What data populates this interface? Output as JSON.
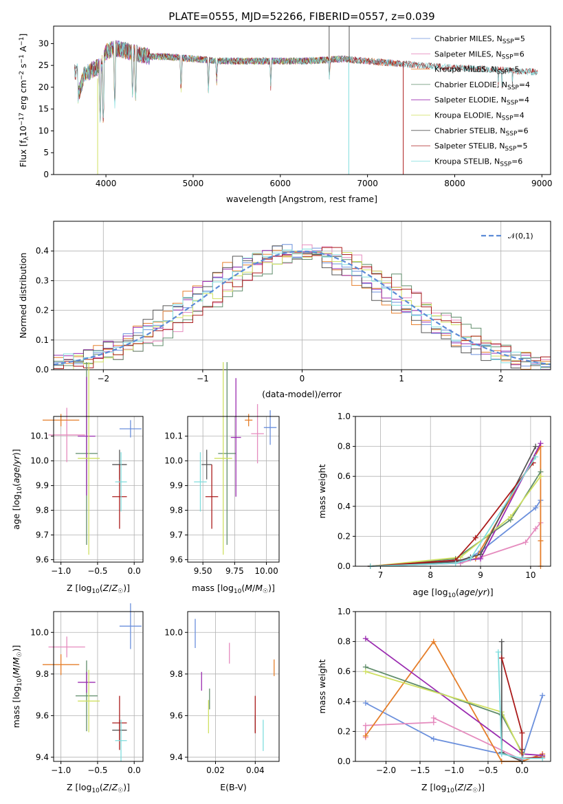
{
  "title": "PLATE=0555, MJD=52266, FIBERID=0557, z=0.039",
  "colors": {
    "Chabrier MILES": "#6a8fdc",
    "Salpeter MILES": "#e58bbe",
    "Kroupa MILES": "#e57e2a",
    "Chabrier ELODIE": "#5f8c6a",
    "Salpeter ELODIE": "#9a2bb0",
    "Kroupa ELODIE": "#cfe061",
    "Chabrier STELIB": "#555555",
    "Salpeter STELIB": "#aa1a1a",
    "Kroupa STELIB": "#7fdddd",
    "normal": "#5b8ad6"
  },
  "chart_data": [
    {
      "id": "spectrum",
      "type": "line",
      "xlabel": "wavelength [Angstrom, rest frame]",
      "ylabel": "Flux [f_λ10^-17 erg cm^-2 s^-1 A^-1]",
      "xlim": [
        3400,
        9100
      ],
      "ylim": [
        0,
        34
      ],
      "xticks": [
        4000,
        5000,
        6000,
        7000,
        8000,
        9000
      ],
      "yticks": [
        0,
        5,
        10,
        15,
        20,
        25,
        30
      ],
      "legend_position": "upper right",
      "legend": [
        {
          "prefix": "Chabrier MILES, N",
          "sub": "SSP",
          "suffix": "=5",
          "series": "Chabrier MILES"
        },
        {
          "prefix": "Salpeter MILES, N",
          "sub": "SSP",
          "suffix": "=6",
          "series": "Salpeter MILES"
        },
        {
          "prefix": "Kroupa MILES, N",
          "sub": "SSP",
          "suffix": "=5",
          "series": "Kroupa MILES"
        },
        {
          "prefix": "Chabrier ELODIE, N",
          "sub": "SSP",
          "suffix": "=4",
          "series": "Chabrier ELODIE"
        },
        {
          "prefix": "Salpeter ELODIE, N",
          "sub": "SSP",
          "suffix": "=4",
          "series": "Salpeter ELODIE"
        },
        {
          "prefix": "Kroupa ELODIE, N",
          "sub": "SSP",
          "suffix": "=4",
          "series": "Kroupa ELODIE"
        },
        {
          "prefix": "Chabrier STELIB, N",
          "sub": "SSP",
          "suffix": "=6",
          "series": "Chabrier STELIB"
        },
        {
          "prefix": "Salpeter STELIB, N",
          "sub": "SSP",
          "suffix": "=5",
          "series": "Salpeter STELIB"
        },
        {
          "prefix": "Kroupa STELIB, N",
          "sub": "SSP",
          "suffix": "=6",
          "series": "Kroupa STELIB"
        }
      ],
      "continuum": {
        "x": [
          3680,
          3750,
          3850,
          3950,
          4000,
          4100,
          4300,
          4500,
          4700,
          5000,
          5300,
          5600,
          6000,
          6300,
          6700,
          7000,
          7300,
          7600,
          8000,
          8500,
          8900
        ],
        "y": [
          18,
          23,
          24,
          25,
          28,
          29,
          28,
          27,
          27,
          26.5,
          26,
          26,
          26,
          26,
          26.5,
          26,
          25.5,
          25,
          24.5,
          24,
          23.5
        ]
      },
      "absorption_lines": [
        {
          "x": 3934,
          "y": 12
        },
        {
          "x": 3969,
          "y": 12
        },
        {
          "x": 4102,
          "y": 16
        },
        {
          "x": 4305,
          "y": 18
        },
        {
          "x": 4341,
          "y": 17
        },
        {
          "x": 4861,
          "y": 19
        },
        {
          "x": 5175,
          "y": 19
        },
        {
          "x": 5270,
          "y": 21
        },
        {
          "x": 5890,
          "y": 20
        },
        {
          "x": 6563,
          "y": 22
        },
        {
          "x": 8500,
          "y": 21
        },
        {
          "x": 8542,
          "y": 20
        },
        {
          "x": 8662,
          "y": 21
        }
      ],
      "spikes": [
        {
          "series": "Kroupa ELODIE",
          "x": 3905,
          "y0": 0,
          "y1": 22
        },
        {
          "series": "Salpeter STELIB",
          "x": 7410,
          "y0": 0,
          "y1": 26
        },
        {
          "series": "Kroupa STELIB",
          "x": 6785,
          "y0": 0,
          "y1": 26
        },
        {
          "series": "Chabrier STELIB",
          "x": 6560,
          "y0": 26,
          "y1": 34
        },
        {
          "series": "Chabrier STELIB",
          "x": 6790,
          "y0": 26,
          "y1": 34
        }
      ]
    },
    {
      "id": "residuals",
      "type": "histogram",
      "xlabel": "(data-model)/error",
      "ylabel": "Normed distribution",
      "xlim": [
        -2.5,
        2.5
      ],
      "ylim": [
        0,
        0.5
      ],
      "xticks": [
        -2,
        -1,
        0,
        1,
        2
      ],
      "yticks": [
        0.0,
        0.1,
        0.2,
        0.3,
        0.4
      ],
      "legend": "𝒩(0,1)",
      "legend_position": "upper right",
      "bin_width": 0.1,
      "series": [
        {
          "name": "Chabrier MILES",
          "shift": 0.01
        },
        {
          "name": "Salpeter MILES",
          "shift": -0.015
        },
        {
          "name": "Kroupa MILES",
          "shift": 0.018
        },
        {
          "name": "Chabrier ELODIE",
          "shift": -0.02
        },
        {
          "name": "Salpeter ELODIE",
          "shift": 0.012
        },
        {
          "name": "Kroupa ELODIE",
          "shift": -0.008
        },
        {
          "name": "Chabrier STELIB",
          "shift": 0.02
        },
        {
          "name": "Salpeter STELIB",
          "shift": -0.012
        },
        {
          "name": "Kroupa STELIB",
          "shift": 0.006
        }
      ]
    },
    {
      "id": "age-vs-Z",
      "type": "errorbar",
      "xlabel": "Z [log10(Z/Z☉)]",
      "ylabel": "age  [log10(age/yr)]",
      "xlim": [
        -1.1,
        0.12
      ],
      "ylim": [
        9.59,
        10.18
      ],
      "xticks": [
        -1.0,
        -0.5,
        0.0
      ],
      "xticklabels": [
        "−1.0",
        "−0.5",
        "0.0"
      ],
      "yticks": [
        9.6,
        9.7,
        9.8,
        9.9,
        10.0,
        10.1
      ],
      "points": [
        {
          "series": "Chabrier MILES",
          "x": -0.05,
          "xerr": 0.15,
          "y": 10.13,
          "yerr": 0.035
        },
        {
          "series": "Salpeter MILES",
          "x": -0.92,
          "xerr": 0.25,
          "y": 10.105,
          "yerr": 0.11
        },
        {
          "series": "Kroupa MILES",
          "x": -1.0,
          "xerr": 0.25,
          "y": 10.165,
          "yerr": 0.025
        },
        {
          "series": "Chabrier ELODIE",
          "x": -0.65,
          "xerr": 0.15,
          "y": 10.03,
          "yerr": 0.37
        },
        {
          "series": "Salpeter ELODIE",
          "x": -0.65,
          "xerr": 0.12,
          "y": 10.1,
          "yerr": 0.24
        },
        {
          "series": "Kroupa ELODIE",
          "x": -0.62,
          "xerr": 0.15,
          "y": 10.01,
          "yerr": 0.39
        },
        {
          "series": "Chabrier STELIB",
          "x": -0.2,
          "xerr": 0.1,
          "y": 9.985,
          "yerr": 0.06
        },
        {
          "series": "Salpeter STELIB",
          "x": -0.2,
          "xerr": 0.1,
          "y": 9.855,
          "yerr": 0.13
        },
        {
          "series": "Kroupa STELIB",
          "x": -0.18,
          "xerr": 0.08,
          "y": 9.915,
          "yerr": 0.12
        }
      ]
    },
    {
      "id": "age-vs-mass",
      "type": "errorbar",
      "xlabel": "mass [log10(M/M☉)]",
      "ylabel": "",
      "xlim": [
        9.38,
        10.1
      ],
      "ylim": [
        9.59,
        10.18
      ],
      "xticks": [
        9.5,
        9.75,
        10.0
      ],
      "xticklabels": [
        "9.50",
        "9.75",
        "10.00"
      ],
      "yticks": [
        9.6,
        9.7,
        9.8,
        9.9,
        10.0,
        10.1
      ],
      "points": [
        {
          "series": "Chabrier MILES",
          "x": 10.03,
          "xerr": 0.05,
          "y": 10.135,
          "yerr": 0.07
        },
        {
          "series": "Salpeter MILES",
          "x": 9.93,
          "xerr": 0.05,
          "y": 10.11,
          "yerr": 0.12
        },
        {
          "series": "Kroupa MILES",
          "x": 9.86,
          "xerr": 0.03,
          "y": 10.165,
          "yerr": 0.025
        },
        {
          "series": "Chabrier ELODIE",
          "x": 9.69,
          "xerr": 0.07,
          "y": 10.03,
          "yerr": 0.37
        },
        {
          "series": "Salpeter ELODIE",
          "x": 9.76,
          "xerr": 0.04,
          "y": 10.095,
          "yerr": 0.24
        },
        {
          "series": "Kroupa ELODIE",
          "x": 9.66,
          "xerr": 0.07,
          "y": 10.01,
          "yerr": 0.39
        },
        {
          "series": "Chabrier STELIB",
          "x": 9.53,
          "xerr": 0.04,
          "y": 9.985,
          "yerr": 0.06
        },
        {
          "series": "Salpeter STELIB",
          "x": 9.57,
          "xerr": 0.05,
          "y": 9.855,
          "yerr": 0.13
        },
        {
          "series": "Kroupa STELIB",
          "x": 9.48,
          "xerr": 0.05,
          "y": 9.915,
          "yerr": 0.12
        }
      ]
    },
    {
      "id": "massweight-vs-age",
      "type": "line",
      "xlabel": "age  [log10(age/yr)]",
      "ylabel": "mass weight",
      "xlim": [
        6.5,
        10.4
      ],
      "ylim": [
        0,
        1
      ],
      "xticks": [
        7,
        8,
        9,
        10
      ],
      "yticks": [
        0.0,
        0.2,
        0.4,
        0.6,
        0.8,
        1.0
      ],
      "series": [
        {
          "name": "Chabrier MILES",
          "x": [
            6.8,
            8.6,
            9.0,
            10.1,
            10.2
          ],
          "y": [
            0.0,
            0.02,
            0.1,
            0.39,
            0.44
          ]
        },
        {
          "name": "Salpeter MILES",
          "x": [
            6.8,
            8.6,
            9.0,
            9.9,
            10.1,
            10.2
          ],
          "y": [
            0.0,
            0.02,
            0.06,
            0.16,
            0.25,
            0.29
          ]
        },
        {
          "name": "Kroupa MILES",
          "x": [
            8.5,
            8.9,
            10.2,
            10.2,
            10.2
          ],
          "y": [
            0.04,
            0.05,
            0.8,
            0.17,
            0.0
          ]
        },
        {
          "name": "Chabrier ELODIE",
          "x": [
            6.8,
            8.5,
            9.6,
            10.2
          ],
          "y": [
            0.0,
            0.05,
            0.31,
            0.63
          ]
        },
        {
          "name": "Salpeter ELODIE",
          "x": [
            6.8,
            8.6,
            9.0,
            10.2
          ],
          "y": [
            0.0,
            0.04,
            0.05,
            0.82
          ]
        },
        {
          "name": "Kroupa ELODIE",
          "x": [
            6.8,
            8.6,
            9.6,
            10.2
          ],
          "y": [
            0.0,
            0.06,
            0.33,
            0.6
          ]
        },
        {
          "name": "Chabrier STELIB",
          "x": [
            6.8,
            8.5,
            8.8,
            9.0,
            10.1
          ],
          "y": [
            0.0,
            0.03,
            0.06,
            0.08,
            0.8
          ]
        },
        {
          "name": "Salpeter STELIB",
          "x": [
            6.8,
            8.5,
            8.9,
            10.05
          ],
          "y": [
            0.0,
            0.04,
            0.19,
            0.69
          ]
        },
        {
          "name": "Kroupa STELIB",
          "x": [
            6.8,
            8.5,
            8.8,
            10.1
          ],
          "y": [
            0.0,
            0.02,
            0.05,
            0.73
          ]
        }
      ]
    },
    {
      "id": "mass-vs-Z",
      "type": "errorbar",
      "xlabel": "Z [log10(Z/Z☉)]",
      "ylabel": "mass [log10(M/M☉)]",
      "xlim": [
        -1.1,
        0.12
      ],
      "ylim": [
        9.38,
        10.1
      ],
      "xticks": [
        -1.0,
        -0.5,
        0.0
      ],
      "xticklabels": [
        "−1.0",
        "−0.5",
        "0.0"
      ],
      "yticks": [
        9.4,
        9.6,
        9.8,
        10.0
      ],
      "points": [
        {
          "series": "Chabrier MILES",
          "x": -0.05,
          "xerr": 0.15,
          "y": 10.03,
          "yerr": 0.11
        },
        {
          "series": "Salpeter MILES",
          "x": -0.92,
          "xerr": 0.25,
          "y": 9.93,
          "yerr": 0.05
        },
        {
          "series": "Kroupa MILES",
          "x": -1.0,
          "xerr": 0.25,
          "y": 9.845,
          "yerr": 0.05
        },
        {
          "series": "Chabrier ELODIE",
          "x": -0.65,
          "xerr": 0.15,
          "y": 9.695,
          "yerr": 0.17
        },
        {
          "series": "Salpeter ELODIE",
          "x": -0.65,
          "xerr": 0.12,
          "y": 9.76,
          "yerr": 0.05
        },
        {
          "series": "Kroupa ELODIE",
          "x": -0.62,
          "xerr": 0.15,
          "y": 9.67,
          "yerr": 0.15
        },
        {
          "series": "Chabrier STELIB",
          "x": -0.2,
          "xerr": 0.1,
          "y": 9.53,
          "yerr": 0.05
        },
        {
          "series": "Salpeter STELIB",
          "x": -0.2,
          "xerr": 0.1,
          "y": 9.565,
          "yerr": 0.13
        },
        {
          "series": "Kroupa STELIB",
          "x": -0.18,
          "xerr": 0.08,
          "y": 9.48,
          "yerr": 0.1
        }
      ]
    },
    {
      "id": "mass-vs-EBV",
      "type": "errorbar",
      "xlabel": "E(B-V)",
      "ylabel": "",
      "xlim": [
        0.006,
        0.052
      ],
      "ylim": [
        9.38,
        10.1
      ],
      "xticks": [
        0.02,
        0.04
      ],
      "xticklabels": [
        "0.02",
        "0.04"
      ],
      "yticks": [
        9.4,
        9.6,
        9.8,
        10.0
      ],
      "points": [
        {
          "series": "Chabrier MILES",
          "x": 0.0098,
          "xerr": 0,
          "y": 9.995,
          "yerr": 0.07
        },
        {
          "series": "Salpeter MILES",
          "x": 0.027,
          "xerr": 0,
          "y": 9.9,
          "yerr": 0.05
        },
        {
          "series": "Kroupa MILES",
          "x": 0.0495,
          "xerr": 0,
          "y": 9.83,
          "yerr": 0.04
        },
        {
          "series": "Chabrier ELODIE",
          "x": 0.017,
          "xerr": 0,
          "y": 9.68,
          "yerr": 0.05
        },
        {
          "series": "Salpeter ELODIE",
          "x": 0.013,
          "xerr": 0,
          "y": 9.765,
          "yerr": 0.045
        },
        {
          "series": "Kroupa ELODIE",
          "x": 0.0165,
          "xerr": 0,
          "y": 9.595,
          "yerr": 0.08
        },
        {
          "series": "Chabrier STELIB",
          "x": 0.04,
          "xerr": 0,
          "y": 9.56,
          "yerr": 0.04
        },
        {
          "series": "Salpeter STELIB",
          "x": 0.04,
          "xerr": 0,
          "y": 9.605,
          "yerr": 0.09
        },
        {
          "series": "Kroupa STELIB",
          "x": 0.044,
          "xerr": 0,
          "y": 9.505,
          "yerr": 0.075
        }
      ]
    },
    {
      "id": "massweight-vs-Z",
      "type": "line",
      "xlabel": "Z [log10(Z/Z☉)]",
      "ylabel": "mass weight",
      "xlim": [
        -2.45,
        0.42
      ],
      "ylim": [
        0,
        1
      ],
      "xticks": [
        -2.0,
        -1.5,
        -1.0,
        -0.5,
        0.0
      ],
      "xticklabels": [
        "−2.0",
        "−1.5",
        "−1.0",
        "−0.5",
        "0.0"
      ],
      "yticks": [
        0.0,
        0.2,
        0.4,
        0.6,
        0.8,
        1.0
      ],
      "series": [
        {
          "name": "Chabrier MILES",
          "x": [
            -2.3,
            -1.3,
            -0.3,
            0.0,
            0.3
          ],
          "y": [
            0.39,
            0.15,
            0.05,
            0.02,
            0.44
          ]
        },
        {
          "name": "Salpeter MILES",
          "x": [
            -2.3,
            -2.3,
            -1.3,
            -1.3,
            0.0
          ],
          "y": [
            0.16,
            0.24,
            0.26,
            0.29,
            0.01
          ]
        },
        {
          "name": "Kroupa MILES",
          "x": [
            -2.3,
            -1.3,
            -0.3,
            0.0,
            0.3
          ],
          "y": [
            0.17,
            0.8,
            0.0,
            0.0,
            0.05
          ]
        },
        {
          "name": "Chabrier ELODIE",
          "x": [
            -2.3,
            -0.3,
            0.0
          ],
          "y": [
            0.63,
            0.31,
            0.06
          ]
        },
        {
          "name": "Salpeter ELODIE",
          "x": [
            -2.3,
            0.0,
            0.3
          ],
          "y": [
            0.82,
            0.05,
            0.04
          ]
        },
        {
          "name": "Kroupa ELODIE",
          "x": [
            -2.3,
            -0.3,
            0.0
          ],
          "y": [
            0.6,
            0.33,
            0.05
          ]
        },
        {
          "name": "Chabrier STELIB",
          "x": [
            -0.3,
            -0.3,
            0.0,
            0.0
          ],
          "y": [
            0.8,
            0.06,
            0.0,
            0.08
          ]
        },
        {
          "name": "Salpeter STELIB",
          "x": [
            -0.3,
            0.0,
            0.0,
            0.3
          ],
          "y": [
            0.69,
            0.19,
            0.02,
            0.03
          ]
        },
        {
          "name": "Kroupa STELIB",
          "x": [
            -0.35,
            -0.3,
            0.0,
            0.3
          ],
          "y": [
            0.73,
            0.05,
            0.02,
            0.02
          ]
        }
      ]
    }
  ]
}
